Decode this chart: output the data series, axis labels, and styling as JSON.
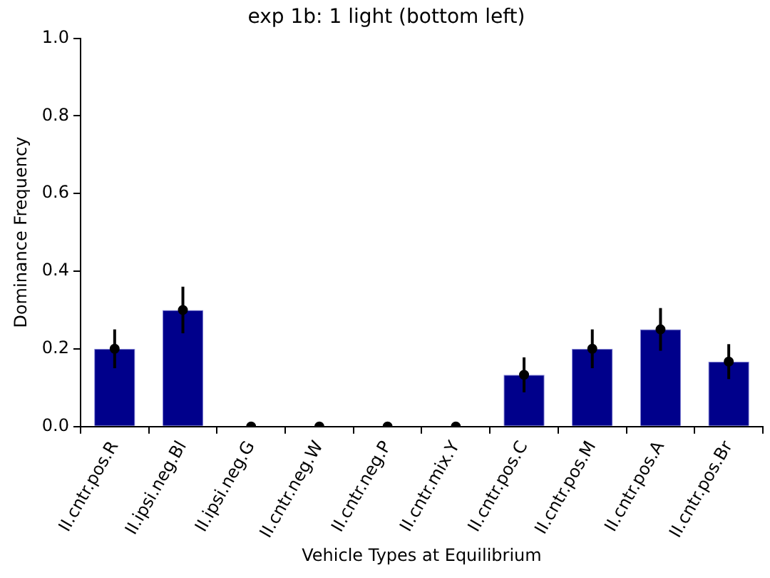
{
  "chart_data": {
    "type": "bar",
    "title": "exp 1b: 1 light (bottom left)",
    "xlabel": "Vehicle Types at Equilibrium",
    "ylabel": "Dominance Frequency",
    "categories": [
      "II.cntr.pos.R",
      "II.ipsi.neg.Bl",
      "II.ipsi.neg.G",
      "II.cntr.neg.W",
      "II.cntr.neg.P",
      "II.cntr.mix.Y",
      "II.cntr.pos.C",
      "II.cntr.pos.M",
      "II.cntr.pos.A",
      "II.cntr.pos.Br"
    ],
    "values": [
      0.2,
      0.3,
      0,
      0,
      0,
      0,
      0.133,
      0.2,
      0.25,
      0.167
    ],
    "errors": [
      0.05,
      0.06,
      0,
      0,
      0,
      0,
      0.045,
      0.05,
      0.055,
      0.045
    ],
    "color": "#00008b",
    "ylim": [
      0,
      1
    ],
    "yticks": [
      {
        "value": 0,
        "label": "0.0"
      },
      {
        "value": 0.2,
        "label": "0.2"
      },
      {
        "value": 0.4,
        "label": "0.4"
      },
      {
        "value": 0.6,
        "label": "0.6"
      },
      {
        "value": 0.8,
        "label": "0.8"
      },
      {
        "value": 1,
        "label": "1.0"
      }
    ],
    "series": [
      {
        "type": "scatter",
        "x": [
          "II.cntr.pos.R",
          "II.ipsi.neg.Bl",
          "II.ipsi.neg.G",
          "II.cntr.neg.W",
          "II.cntr.neg.P",
          "II.cntr.mix.Y",
          "II.cntr.pos.C",
          "II.cntr.pos.M",
          "II.cntr.pos.A",
          "II.cntr.pos.Br"
        ],
        "values": [
          0.2,
          0.3,
          0,
          0,
          0,
          0,
          0.133,
          0.2,
          0.25,
          0.167
        ],
        "color": "#000000"
      }
    ],
    "marker": "circle",
    "grid": false,
    "legend": false
  }
}
